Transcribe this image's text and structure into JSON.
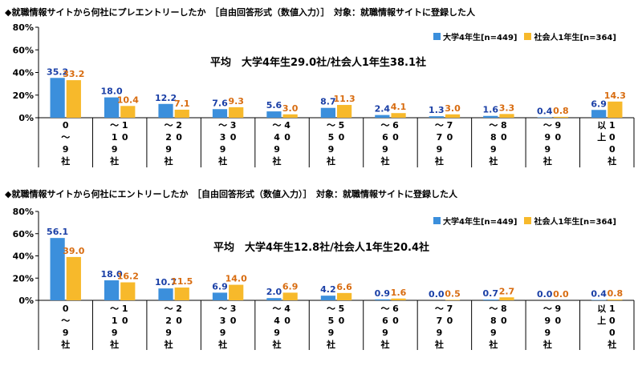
{
  "colors": {
    "university": "#3b8fdc",
    "worker": "#f7b92b",
    "label_university": "#1a3fa6",
    "label_worker": "#d86c10"
  },
  "chart_data": [
    {
      "type": "bar",
      "title": "◆就職情報サイトから何社にプレエントリーしたか　［自由回答形式（数値入力）］　対象：就職情報サイトに登録した人",
      "average": "平均　大学4年生29.0社/社会人1年生38.1社",
      "categories": [
        "0〜9社",
        "10〜19社",
        "20〜29社",
        "30〜39社",
        "40〜49社",
        "50〜59社",
        "60〜69社",
        "70〜79社",
        "80〜89社",
        "90〜99社",
        "100社以上"
      ],
      "category_labels": [
        [
          [
            "0",
            "〜",
            "9",
            "社"
          ]
        ],
        [
          [
            "〜",
            "1",
            "9",
            "社"
          ],
          [
            "1",
            "0"
          ]
        ],
        [
          [
            "〜",
            "2",
            "9",
            "社"
          ],
          [
            "2",
            "0"
          ]
        ],
        [
          [
            "〜",
            "3",
            "9",
            "社"
          ],
          [
            "3",
            "0"
          ]
        ],
        [
          [
            "〜",
            "4",
            "9",
            "社"
          ],
          [
            "4",
            "0"
          ]
        ],
        [
          [
            "〜",
            "5",
            "9",
            "社"
          ],
          [
            "5",
            "0"
          ]
        ],
        [
          [
            "〜",
            "6",
            "9",
            "社"
          ],
          [
            "6",
            "0"
          ]
        ],
        [
          [
            "〜",
            "7",
            "9",
            "社"
          ],
          [
            "7",
            "0"
          ]
        ],
        [
          [
            "〜",
            "8",
            "9",
            "社"
          ],
          [
            "8",
            "0"
          ]
        ],
        [
          [
            "〜",
            "9",
            "9",
            "社"
          ],
          [
            "9",
            "0"
          ]
        ],
        [
          [
            "以",
            "上"
          ],
          [
            "1",
            "0",
            "0",
            "社"
          ]
        ]
      ],
      "series": [
        {
          "name": "大学4年生[n=449]",
          "values": [
            35.2,
            18.0,
            12.2,
            7.6,
            5.6,
            8.7,
            2.4,
            1.3,
            1.6,
            0.4,
            6.9
          ]
        },
        {
          "name": "社会人1年生[n=364]",
          "values": [
            33.2,
            10.4,
            7.1,
            9.3,
            3.0,
            11.3,
            4.1,
            3.0,
            3.3,
            0.8,
            14.3
          ]
        }
      ],
      "ylim": [
        0,
        80
      ],
      "yticks": [
        "0%",
        "20%",
        "40%",
        "60%",
        "80%"
      ],
      "grid": false,
      "legend": "top-right"
    },
    {
      "type": "bar",
      "title": "◆就職情報サイトから何社にエントリーしたか　［自由回答形式（数値入力）］　対象：就職情報サイトに登録した人",
      "average": "平均　大学4年生12.8社/社会人1年生20.4社",
      "categories": [
        "0〜9社",
        "10〜19社",
        "20〜29社",
        "30〜39社",
        "40〜49社",
        "50〜59社",
        "60〜69社",
        "70〜79社",
        "80〜89社",
        "90〜99社",
        "100社以上"
      ],
      "category_labels": [
        [
          [
            "0",
            "〜",
            "9",
            "社"
          ]
        ],
        [
          [
            "〜",
            "1",
            "9",
            "社"
          ],
          [
            "1",
            "0"
          ]
        ],
        [
          [
            "〜",
            "2",
            "9",
            "社"
          ],
          [
            "2",
            "0"
          ]
        ],
        [
          [
            "〜",
            "3",
            "9",
            "社"
          ],
          [
            "3",
            "0"
          ]
        ],
        [
          [
            "〜",
            "4",
            "9",
            "社"
          ],
          [
            "4",
            "0"
          ]
        ],
        [
          [
            "〜",
            "5",
            "9",
            "社"
          ],
          [
            "5",
            "0"
          ]
        ],
        [
          [
            "〜",
            "6",
            "9",
            "社"
          ],
          [
            "6",
            "0"
          ]
        ],
        [
          [
            "〜",
            "7",
            "9",
            "社"
          ],
          [
            "7",
            "0"
          ]
        ],
        [
          [
            "〜",
            "8",
            "9",
            "社"
          ],
          [
            "8",
            "0"
          ]
        ],
        [
          [
            "〜",
            "9",
            "9",
            "社"
          ],
          [
            "9",
            "0"
          ]
        ],
        [
          [
            "以",
            "上"
          ],
          [
            "1",
            "0",
            "0",
            "社"
          ]
        ]
      ],
      "series": [
        {
          "name": "大学4年生[n=449]",
          "values": [
            56.1,
            18.0,
            10.7,
            6.9,
            2.0,
            4.2,
            0.9,
            0.0,
            0.7,
            0.0,
            0.4
          ]
        },
        {
          "name": "社会人1年生[n=364]",
          "values": [
            39.0,
            16.2,
            11.5,
            14.0,
            6.9,
            6.6,
            1.6,
            0.5,
            2.7,
            0.0,
            0.8
          ]
        }
      ],
      "ylim": [
        0,
        80
      ],
      "yticks": [
        "0%",
        "20%",
        "40%",
        "60%",
        "80%"
      ],
      "grid": false,
      "legend": "top-right"
    }
  ]
}
